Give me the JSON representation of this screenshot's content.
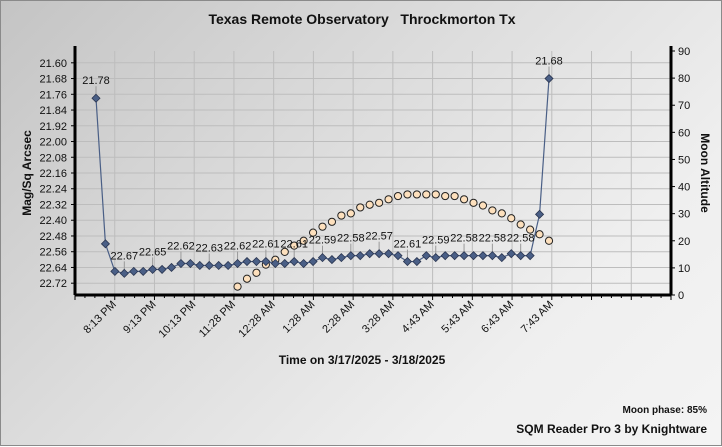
{
  "chart_data": {
    "type": "line",
    "title": "Texas Remote Observatory   Throckmorton Tx",
    "xlabel": "Time on 3/17/2025 - 3/18/2025",
    "ylabel": "Mag/Sq Arcsec",
    "y2label": "Moon Altitude",
    "x_ticks": [
      "8:13 PM",
      "9:13 PM",
      "10:13 PM",
      "11:28 PM",
      "12:28 AM",
      "1:28 AM",
      "2:28 AM",
      "3:28 AM",
      "4:43 AM",
      "5:43 AM",
      "6:43 AM",
      "7:43 AM"
    ],
    "y_ticks": [
      "21.60",
      "21.68",
      "21.76",
      "21.84",
      "21.92",
      "22.00",
      "22.08",
      "22.16",
      "22.24",
      "22.32",
      "22.40",
      "22.48",
      "22.56",
      "22.64",
      "22.72"
    ],
    "ylim": [
      22.78,
      21.54
    ],
    "y_reversed": true,
    "y2_ticks": [
      "0",
      "10",
      "20",
      "30",
      "40",
      "50",
      "60",
      "70",
      "80",
      "90"
    ],
    "y2lim": [
      0,
      90
    ],
    "grid": true,
    "series": [
      {
        "name": "Mag/Sq Arcsec",
        "axis": "left",
        "marker": "diamond",
        "color": "#4a5f86",
        "values": [
          21.78,
          22.52,
          22.66,
          22.67,
          22.66,
          22.66,
          22.65,
          22.65,
          22.64,
          22.62,
          22.62,
          22.63,
          22.63,
          22.63,
          22.63,
          22.62,
          22.61,
          22.61,
          22.61,
          22.62,
          22.62,
          22.61,
          22.62,
          22.61,
          22.59,
          22.6,
          22.59,
          22.58,
          22.58,
          22.57,
          22.57,
          22.57,
          22.58,
          22.61,
          22.61,
          22.58,
          22.59,
          22.58,
          22.58,
          22.58,
          22.58,
          22.58,
          22.58,
          22.59,
          22.57,
          22.58,
          22.58,
          22.37,
          21.68
        ]
      },
      {
        "name": "Moon Altitude",
        "axis": "right",
        "marker": "circle",
        "color": "#fde0bd",
        "values": [
          null,
          null,
          null,
          null,
          null,
          null,
          null,
          null,
          null,
          null,
          null,
          null,
          null,
          null,
          null,
          3.1,
          6.0,
          8.2,
          11.2,
          13.0,
          15.9,
          18.2,
          20.0,
          23.0,
          25.2,
          27.0,
          29.3,
          30.1,
          32.3,
          33.3,
          34.0,
          35.3,
          36.5,
          37.1,
          37.1,
          37.1,
          37.1,
          36.5,
          36.5,
          35.3,
          34.0,
          33.0,
          31.2,
          30.1,
          28.3,
          26.0,
          24.1,
          22.4,
          20.0
        ]
      }
    ],
    "data_label_every": 3
  },
  "footer": {
    "moon_phase": "Moon phase: 85%",
    "credit": "SQM Reader Pro 3 by Knightware"
  }
}
